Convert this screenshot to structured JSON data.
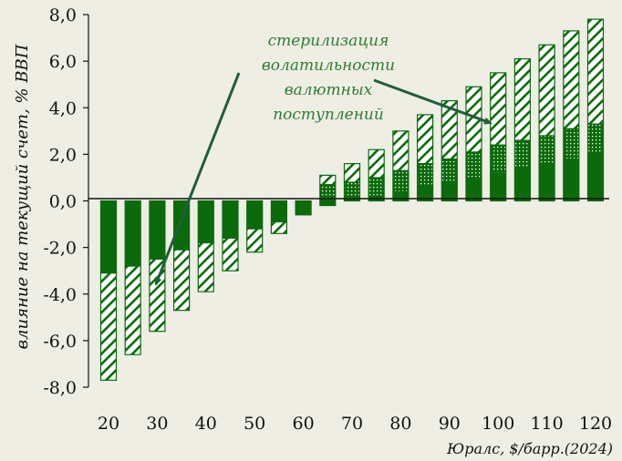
{
  "chart_data": {
    "type": "bar",
    "stacked": true,
    "xlabel": "Юралс, $/барр.(2024)",
    "ylabel": "влияние на текущий счет, % ВВП",
    "ylim": [
      -8,
      8
    ],
    "y_ticks": [
      8,
      6,
      4,
      2,
      0,
      -2,
      -4,
      -6,
      -8
    ],
    "y_tick_labels": [
      "8,0",
      "6,0",
      "4,0",
      "2,0",
      "0,0",
      "-2,0",
      "-4,0",
      "-6,0",
      "-8,0"
    ],
    "x": [
      20,
      25,
      30,
      35,
      40,
      45,
      50,
      55,
      60,
      65,
      70,
      75,
      80,
      85,
      90,
      95,
      100,
      105,
      110,
      115,
      120
    ],
    "x_tick_labels": [
      "20",
      "30",
      "40",
      "50",
      "60",
      "70",
      "80",
      "90",
      "100",
      "110",
      "120"
    ],
    "series": [
      {
        "pattern": "solid",
        "values": [
          -3.1,
          -2.8,
          -2.5,
          -2.1,
          -1.8,
          -1.6,
          -1.2,
          -0.9,
          -0.6,
          -0.2,
          0.0,
          0.2,
          0.4,
          0.6,
          0.8,
          1.0,
          1.2,
          1.4,
          1.6,
          1.8,
          2.0
        ]
      },
      {
        "pattern": "dotted",
        "values": [
          0.0,
          0.0,
          0.0,
          0.0,
          0.0,
          0.0,
          0.0,
          0.0,
          0.0,
          0.7,
          0.8,
          0.8,
          0.9,
          1.0,
          1.0,
          1.1,
          1.2,
          1.2,
          1.2,
          1.3,
          1.3
        ]
      },
      {
        "pattern": "hatched",
        "values": [
          -4.6,
          -3.8,
          -3.1,
          -2.6,
          -2.1,
          -1.4,
          -1.0,
          -0.5,
          0.0,
          0.4,
          0.8,
          1.2,
          1.7,
          2.1,
          2.5,
          2.8,
          3.1,
          3.5,
          3.9,
          4.2,
          4.5
        ]
      }
    ],
    "annotation": {
      "lines": [
        "стерилизация",
        "волатильности",
        "валютных",
        "поступлений"
      ]
    },
    "colors": {
      "background": "#eeeee4",
      "dark_green": "#0b6b0b",
      "annotation_green": "#2e7d32",
      "arrow_green": "#1f5f3a"
    }
  }
}
